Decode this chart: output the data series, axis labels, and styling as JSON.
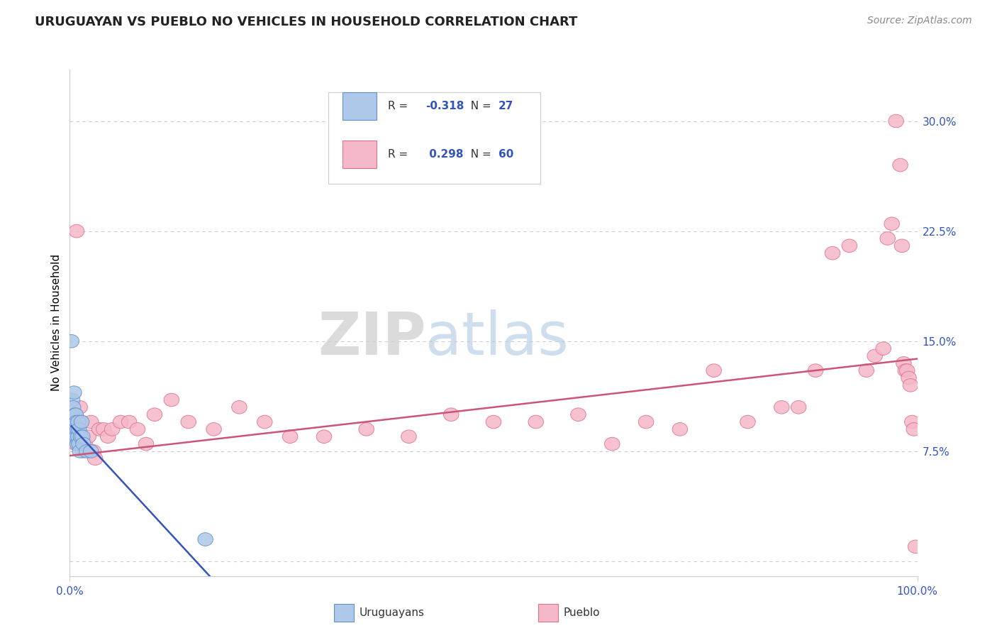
{
  "title": "URUGUAYAN VS PUEBLO NO VEHICLES IN HOUSEHOLD CORRELATION CHART",
  "source": "Source: ZipAtlas.com",
  "ylabel": "No Vehicles in Household",
  "yticks": [
    0.0,
    0.075,
    0.15,
    0.225,
    0.3
  ],
  "ytick_labels": [
    "",
    "7.5%",
    "15.0%",
    "22.5%",
    "30.0%"
  ],
  "xlim": [
    0.0,
    1.0
  ],
  "ylim": [
    -0.01,
    0.335
  ],
  "blue_scatter_color": "#adc8e8",
  "blue_scatter_edge": "#6090c8",
  "pink_scatter_color": "#f5b8c8",
  "pink_scatter_edge": "#e07090",
  "blue_line_color": "#3355bb",
  "pink_line_color": "#cc5577",
  "watermark_zip": "#c8c8c8",
  "watermark_atlas": "#a8c0d8",
  "uruguayan_x": [
    0.002,
    0.003,
    0.003,
    0.004,
    0.004,
    0.005,
    0.005,
    0.006,
    0.006,
    0.007,
    0.007,
    0.008,
    0.008,
    0.009,
    0.009,
    0.01,
    0.01,
    0.011,
    0.011,
    0.012,
    0.013,
    0.014,
    0.015,
    0.016,
    0.02,
    0.025,
    0.16
  ],
  "uruguayan_y": [
    0.15,
    0.095,
    0.11,
    0.085,
    0.105,
    0.095,
    0.115,
    0.085,
    0.1,
    0.09,
    0.1,
    0.085,
    0.095,
    0.08,
    0.09,
    0.085,
    0.095,
    0.08,
    0.09,
    0.075,
    0.085,
    0.095,
    0.085,
    0.08,
    0.075,
    0.075,
    0.015
  ],
  "pueblo_x": [
    0.004,
    0.007,
    0.008,
    0.01,
    0.012,
    0.014,
    0.016,
    0.018,
    0.022,
    0.025,
    0.028,
    0.03,
    0.035,
    0.04,
    0.045,
    0.05,
    0.06,
    0.07,
    0.08,
    0.09,
    0.1,
    0.12,
    0.14,
    0.17,
    0.2,
    0.23,
    0.26,
    0.3,
    0.35,
    0.4,
    0.45,
    0.5,
    0.55,
    0.6,
    0.64,
    0.68,
    0.72,
    0.76,
    0.8,
    0.84,
    0.86,
    0.88,
    0.9,
    0.92,
    0.94,
    0.95,
    0.96,
    0.965,
    0.97,
    0.975,
    0.98,
    0.982,
    0.984,
    0.986,
    0.988,
    0.99,
    0.992,
    0.994,
    0.996,
    0.998
  ],
  "pueblo_y": [
    0.09,
    0.08,
    0.225,
    0.09,
    0.105,
    0.095,
    0.075,
    0.08,
    0.085,
    0.095,
    0.075,
    0.07,
    0.09,
    0.09,
    0.085,
    0.09,
    0.095,
    0.095,
    0.09,
    0.08,
    0.1,
    0.11,
    0.095,
    0.09,
    0.105,
    0.095,
    0.085,
    0.085,
    0.09,
    0.085,
    0.1,
    0.095,
    0.095,
    0.1,
    0.08,
    0.095,
    0.09,
    0.13,
    0.095,
    0.105,
    0.105,
    0.13,
    0.21,
    0.215,
    0.13,
    0.14,
    0.145,
    0.22,
    0.23,
    0.3,
    0.27,
    0.215,
    0.135,
    0.13,
    0.13,
    0.125,
    0.12,
    0.095,
    0.09,
    0.01
  ],
  "pink_trend_x0": 0.0,
  "pink_trend_y0": 0.072,
  "pink_trend_x1": 1.0,
  "pink_trend_y1": 0.138,
  "blue_trend_x0": 0.002,
  "blue_trend_y0": 0.092,
  "blue_trend_x1": 0.165,
  "blue_trend_y1": -0.01
}
